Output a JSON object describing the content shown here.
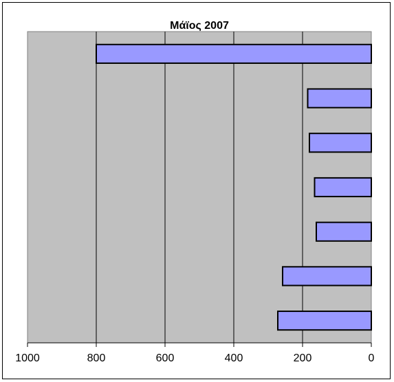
{
  "chart_data": {
    "type": "bar",
    "orientation": "horizontal",
    "x_axis_reversed": true,
    "title": "Μάϊος  2007",
    "categories": [
      "",
      "",
      "",
      "",
      "",
      "",
      ""
    ],
    "values": [
      800,
      185,
      180,
      165,
      160,
      258,
      272
    ],
    "xlim": [
      0,
      1000
    ],
    "tick_values": [
      1000,
      800,
      600,
      400,
      200,
      0
    ],
    "tick_labels": [
      "1000",
      "800",
      "600",
      "400",
      "200",
      "0"
    ],
    "grid": true,
    "legend": "none",
    "colors": {
      "bar_fill": "#9999ff",
      "bar_stroke": "#000000",
      "plot_background": "#c0c0c0",
      "gridline": "#000000"
    }
  }
}
